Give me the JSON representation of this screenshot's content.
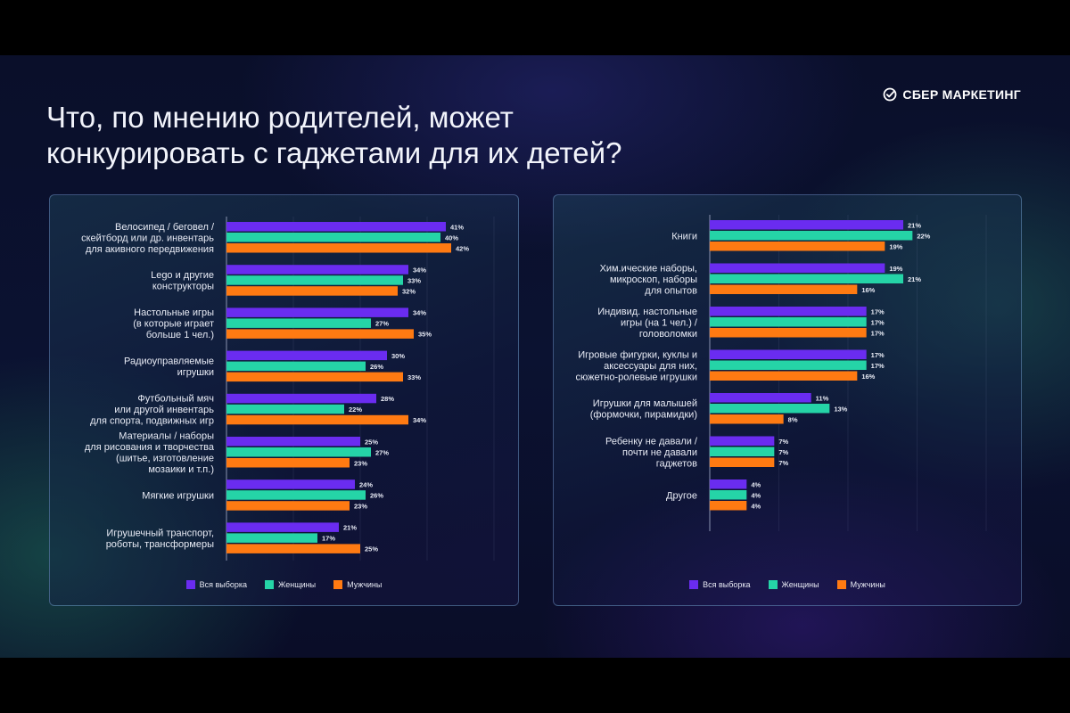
{
  "title_line1": "Что, по мнению родителей, может",
  "title_line2": "конкурировать с гаджетами для их детей?",
  "brand": "СБЕР МАРКЕТИНГ",
  "colors": {
    "all": "#6a2cf0",
    "women": "#25d4a7",
    "men": "#ff7a12",
    "axis": "#8a93b0",
    "label": "#e8ebf5",
    "value": "#e8ebf5"
  },
  "legend": [
    "Вся выборка",
    "Женщины",
    "Мужчины"
  ],
  "chart_data": [
    {
      "type": "bar",
      "orientation": "horizontal",
      "series": [
        {
          "name": "Вся выборка",
          "values": [
            41,
            34,
            34,
            30,
            28,
            25,
            24,
            21
          ]
        },
        {
          "name": "Женщины",
          "values": [
            40,
            33,
            27,
            26,
            22,
            27,
            26,
            17
          ]
        },
        {
          "name": "Мужчины",
          "values": [
            42,
            32,
            35,
            33,
            34,
            23,
            23,
            25
          ]
        }
      ],
      "categories": [
        [
          "Велосипед / беговел /",
          "скейтборд или др. инвентарь",
          "для акивного передвижения"
        ],
        [
          "Lego и другие",
          "конструкторы"
        ],
        [
          "Настольные игры",
          "(в которые играет",
          "больше 1 чел.)"
        ],
        [
          "Радиоуправляемые",
          "игрушки"
        ],
        [
          "Футбольный мяч",
          "или другой инвентарь",
          "для спорта, подвижных  игр"
        ],
        [
          "Материалы / наборы",
          "для рисования  и творчества",
          "(шитье, изготовление",
          "мозаики и т.п.)"
        ],
        [
          "Мягкие игрушки"
        ],
        [
          "Игрушечный транспорт,",
          "роботы, трансформеры"
        ]
      ],
      "value_suffix": "%",
      "xlim": [
        0,
        50
      ]
    },
    {
      "type": "bar",
      "orientation": "horizontal",
      "series": [
        {
          "name": "Вся выборка",
          "values": [
            21,
            19,
            17,
            17,
            11,
            7,
            4
          ]
        },
        {
          "name": "Женщины",
          "values": [
            22,
            21,
            17,
            17,
            13,
            7,
            4
          ]
        },
        {
          "name": "Мужчины",
          "values": [
            19,
            16,
            17,
            16,
            8,
            7,
            4
          ]
        }
      ],
      "categories": [
        [
          "Книги"
        ],
        [
          "Хим.ические наборы,",
          "микроскоп, наборы",
          "для опытов"
        ],
        [
          "Индивид. настольные",
          "игры (на 1 чел.) /",
          "головоломки"
        ],
        [
          "Игровые фигурки, куклы и",
          "аксессуары для них,",
          "сюжетно-ролевые игрушки"
        ],
        [
          "Игрушки для малышей",
          "(формочки, пирамидки)"
        ],
        [
          "Ребенку не давали /",
          "почти не давали",
          "гаджетов"
        ],
        [
          "Другое"
        ]
      ],
      "value_suffix": "%",
      "xlim": [
        0,
        30
      ]
    }
  ]
}
